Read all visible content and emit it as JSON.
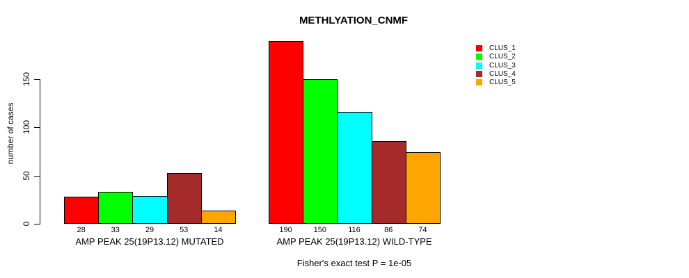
{
  "chart_data": {
    "type": "bar",
    "title": "METHLYATION_CNMF",
    "xlabel": "",
    "ylabel": "number of cases",
    "ylim": [
      0,
      150
    ],
    "yticks": [
      0,
      50,
      100,
      150
    ],
    "grid": false,
    "background": "#FFFFFF",
    "bar_border_color": "#000000",
    "legend_position": "right",
    "legend_labels": [
      "CLUS_1",
      "CLUS_2",
      "CLUS_3",
      "CLUS_4",
      "CLUS_5"
    ],
    "colors": [
      "#FF0000",
      "#00FF00",
      "#00FFFF",
      "#A52A2A",
      "#FFA500"
    ],
    "groups": [
      {
        "label": "AMP PEAK 25(19P13.12) MUTATED",
        "values": [
          28,
          33,
          29,
          53,
          14
        ]
      },
      {
        "label": "AMP PEAK 25(19P13.12) WILD-TYPE",
        "values": [
          190,
          150,
          116,
          86,
          74
        ]
      }
    ],
    "annotation": "Fisher's exact test P = 1e-05"
  }
}
